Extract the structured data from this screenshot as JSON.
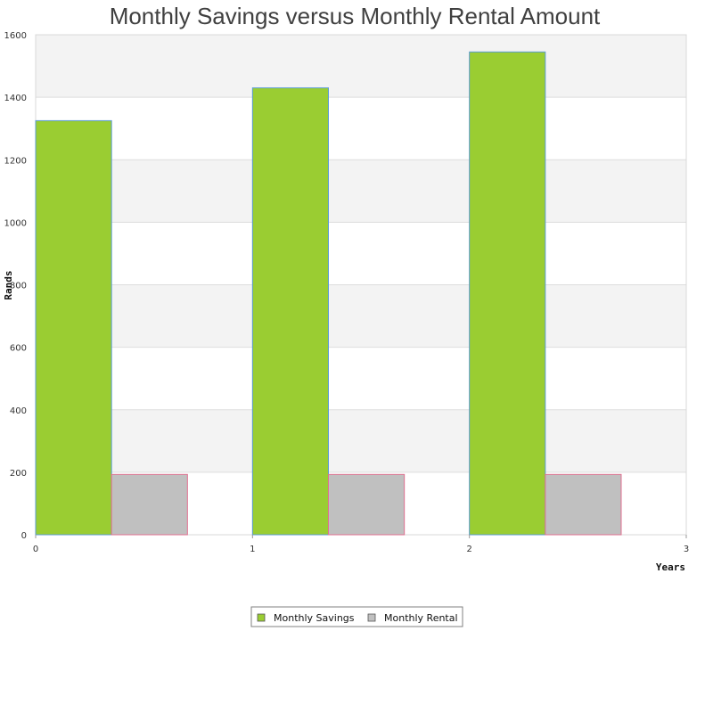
{
  "chart_data": {
    "type": "bar",
    "title": "Monthly Savings versus Monthly Rental Amount",
    "xlabel": "Years",
    "ylabel": "Rands",
    "x_ticks": [
      "0",
      "1",
      "2",
      "3"
    ],
    "y_ticks": [
      "0",
      "200",
      "400",
      "600",
      "800",
      "1000",
      "1200",
      "1400",
      "1600"
    ],
    "xlim": [
      0,
      3
    ],
    "ylim": [
      0,
      1600
    ],
    "x": [
      0,
      1,
      2
    ],
    "series": [
      {
        "name": "Monthly Savings",
        "values": [
          1325,
          1430,
          1545
        ],
        "color": "#9acd32",
        "stroke": "#5b9bd5"
      },
      {
        "name": "Monthly Rental",
        "values": [
          193,
          193,
          193
        ],
        "color": "#c0c0c0",
        "stroke": "#e07090"
      }
    ],
    "grid": true,
    "legend_position": "bottom"
  }
}
